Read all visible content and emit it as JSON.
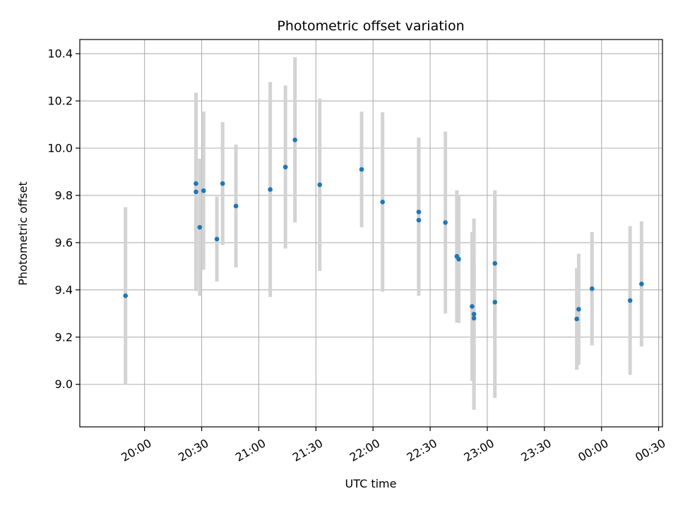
{
  "chart_data": {
    "type": "scatter",
    "title": "Photometric offset variation",
    "xlabel": "UTC time",
    "ylabel": "Photometric offset",
    "grid": true,
    "xlim_minutes": [
      1166,
      1472
    ],
    "ylim": [
      8.82,
      10.46
    ],
    "x_ticks": [
      {
        "label": "20:00",
        "minutes": 1200
      },
      {
        "label": "20:30",
        "minutes": 1230
      },
      {
        "label": "21:00",
        "minutes": 1260
      },
      {
        "label": "21:30",
        "minutes": 1290
      },
      {
        "label": "22:00",
        "minutes": 1320
      },
      {
        "label": "22:30",
        "minutes": 1350
      },
      {
        "label": "23:00",
        "minutes": 1380
      },
      {
        "label": "23:30",
        "minutes": 1410
      },
      {
        "label": "00:00",
        "minutes": 1440
      },
      {
        "label": "00:30",
        "minutes": 1470
      }
    ],
    "y_ticks": [
      {
        "label": "9.0",
        "value": 9.0
      },
      {
        "label": "9.2",
        "value": 9.2
      },
      {
        "label": "9.4",
        "value": 9.4
      },
      {
        "label": "9.6",
        "value": 9.6
      },
      {
        "label": "9.8",
        "value": 9.8
      },
      {
        "label": "10.0",
        "value": 10.0
      },
      {
        "label": "10.2",
        "value": 10.2
      },
      {
        "label": "10.4",
        "value": 10.4
      }
    ],
    "colors": {
      "point": "#1f77b4",
      "errorbar": "#d3d3d3",
      "grid": "#b0b0b0"
    },
    "series": [
      {
        "points": [
          {
            "t": "19:50",
            "y": 9.375,
            "err": 0.375
          },
          {
            "t": "20:27",
            "y": 9.85,
            "err": 0.38
          },
          {
            "t": "20:27",
            "y": 9.815,
            "err": 0.42
          },
          {
            "t": "20:29",
            "y": 9.665,
            "err": 0.29
          },
          {
            "t": "20:31",
            "y": 9.82,
            "err": 0.335
          },
          {
            "t": "20:38",
            "y": 9.615,
            "err": 0.18
          },
          {
            "t": "20:41",
            "y": 9.85,
            "err": 0.26
          },
          {
            "t": "20:48",
            "y": 9.755,
            "err": 0.26
          },
          {
            "t": "21:06",
            "y": 9.825,
            "err": 0.455
          },
          {
            "t": "21:14",
            "y": 9.92,
            "err": 0.345
          },
          {
            "t": "21:19",
            "y": 10.035,
            "err": 0.35
          },
          {
            "t": "21:32",
            "y": 9.845,
            "err": 0.365
          },
          {
            "t": "21:54",
            "y": 9.91,
            "err": 0.245
          },
          {
            "t": "22:05",
            "y": 9.772,
            "err": 0.38
          },
          {
            "t": "22:24",
            "y": 9.73,
            "err": 0.315
          },
          {
            "t": "22:24",
            "y": 9.695,
            "err": 0.32
          },
          {
            "t": "22:38",
            "y": 9.685,
            "err": 0.385
          },
          {
            "t": "22:44",
            "y": 9.542,
            "err": 0.28
          },
          {
            "t": "22:45",
            "y": 9.53,
            "err": 0.27
          },
          {
            "t": "22:52",
            "y": 9.33,
            "err": 0.315
          },
          {
            "t": "22:53",
            "y": 9.297,
            "err": 0.405
          },
          {
            "t": "22:53",
            "y": 9.28,
            "err": 0.255
          },
          {
            "t": "23:04",
            "y": 9.348,
            "err": 0.405
          },
          {
            "t": "23:04",
            "y": 9.512,
            "err": 0.31
          },
          {
            "t": "23:47",
            "y": 9.277,
            "err": 0.215
          },
          {
            "t": "23:48",
            "y": 9.318,
            "err": 0.235
          },
          {
            "t": "23:55",
            "y": 9.405,
            "err": 0.24
          },
          {
            "t": "00:15",
            "y": 9.355,
            "err": 0.315
          },
          {
            "t": "00:21",
            "y": 9.425,
            "err": 0.265
          }
        ]
      }
    ]
  }
}
